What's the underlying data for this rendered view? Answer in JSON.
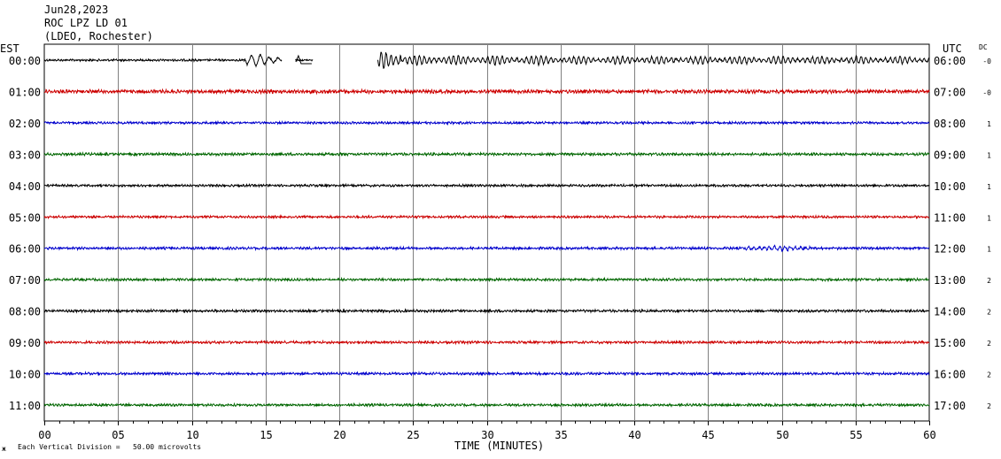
{
  "header": {
    "date": "Jun28,2023",
    "station": "ROC LPZ LD 01",
    "location": "(LDEO, Rochester)"
  },
  "labels": {
    "left_tz": "EST",
    "right_tz": "UTC",
    "dc": "DC",
    "x_title": "TIME (MINUTES)",
    "scale_note": "Each Vertical Division =   50.00 microvolts",
    "corner_mark": "ж"
  },
  "chart_data": {
    "type": "line",
    "title": "",
    "xlabel": "TIME (MINUTES)",
    "x_ticks": [
      "00",
      "05",
      "10",
      "15",
      "20",
      "25",
      "30",
      "35",
      "40",
      "45",
      "50",
      "55",
      "60"
    ],
    "xlim": [
      0,
      60
    ],
    "grid": true,
    "series_colors": [
      "#000000",
      "#cc0000",
      "#0000cc",
      "#006600"
    ],
    "rows": [
      {
        "est": "00:00",
        "utc": "06:00",
        "dc": "-0",
        "color": "#000000",
        "events": [
          {
            "start": 13.6,
            "end": 16.0,
            "amp": 6,
            "period": 0.6,
            "note": "partial"
          },
          {
            "start": 22.6,
            "end": 24.2,
            "amp": 11,
            "period": 0.33
          },
          {
            "start": 24.2,
            "end": 35.0,
            "amp": 5,
            "period": 0.33
          },
          {
            "start": 35.0,
            "end": 60.0,
            "amp": 4,
            "period": 0.33
          }
        ],
        "gaps": [
          [
            16.1,
            17.0
          ],
          [
            18.2,
            22.6
          ]
        ]
      },
      {
        "est": "01:00",
        "utc": "07:00",
        "dc": "-0",
        "color": "#cc0000",
        "noise": 2.2
      },
      {
        "est": "02:00",
        "utc": "08:00",
        "dc": "1",
        "color": "#0000cc",
        "noise": 1.4
      },
      {
        "est": "03:00",
        "utc": "09:00",
        "dc": "1",
        "color": "#006600",
        "noise": 1.6
      },
      {
        "est": "04:00",
        "utc": "10:00",
        "dc": "1",
        "color": "#000000",
        "noise": 1.4
      },
      {
        "est": "05:00",
        "utc": "11:00",
        "dc": "1",
        "color": "#cc0000",
        "noise": 1.4
      },
      {
        "est": "06:00",
        "utc": "12:00",
        "dc": "1",
        "color": "#0000cc",
        "noise": 1.5,
        "events": [
          {
            "start": 47.5,
            "end": 52.0,
            "amp": 2.5,
            "period": 0.35
          }
        ]
      },
      {
        "est": "07:00",
        "utc": "13:00",
        "dc": "2",
        "color": "#006600",
        "noise": 1.5
      },
      {
        "est": "08:00",
        "utc": "14:00",
        "dc": "2",
        "color": "#000000",
        "noise": 1.5
      },
      {
        "est": "09:00",
        "utc": "15:00",
        "dc": "2",
        "color": "#cc0000",
        "noise": 1.5
      },
      {
        "est": "10:00",
        "utc": "16:00",
        "dc": "2",
        "color": "#0000cc",
        "noise": 1.5
      },
      {
        "est": "11:00",
        "utc": "17:00",
        "dc": "2",
        "color": "#006600",
        "noise": 1.5
      }
    ]
  }
}
